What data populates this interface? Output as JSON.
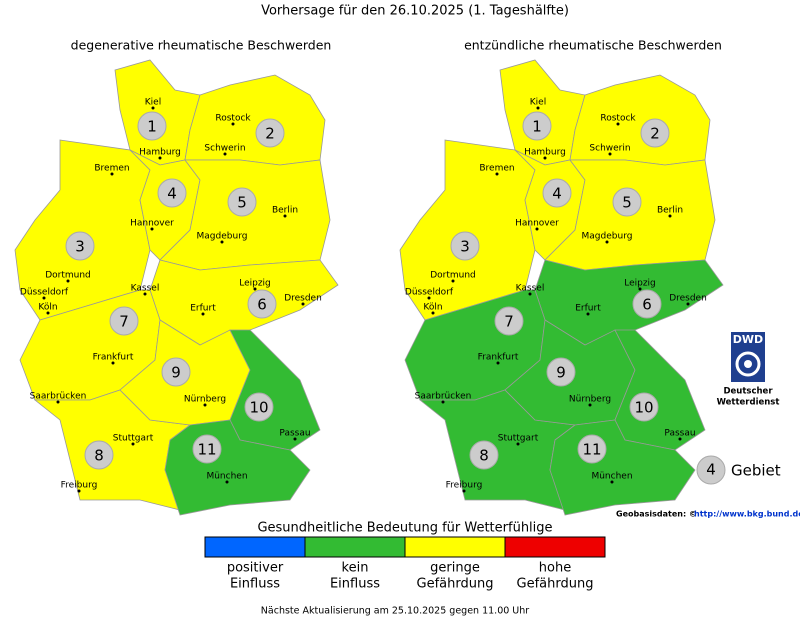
{
  "title": "Vorhersage für den 26.10.2025 (1. Tageshälfte)",
  "regions": [
    "1",
    "2",
    "3",
    "4",
    "5",
    "6",
    "7",
    "8",
    "9",
    "10",
    "11"
  ],
  "cities": [
    "Kiel",
    "Rostock",
    "Hamburg",
    "Schwerin",
    "Bremen",
    "Berlin",
    "Hannover",
    "Magdeburg",
    "Dortmund",
    "Düsseldorf",
    "Köln",
    "Kassel",
    "Leipzig",
    "Dresden",
    "Erfurt",
    "Frankfurt",
    "Nürnberg",
    "Saarbrücken",
    "Stuttgart",
    "Passau",
    "München",
    "Freiburg"
  ],
  "maps": [
    {
      "subtitle": "degenerative rheumatische Beschwerden",
      "region_colors": [
        "#ffff00",
        "#ffff00",
        "#ffff00",
        "#ffff00",
        "#ffff00",
        "#ffff00",
        "#ffff00",
        "#ffff00",
        "#ffff00",
        "#33bb33",
        "#33bb33"
      ]
    },
    {
      "subtitle": "entzündliche rheumatische Beschwerden",
      "region_colors": [
        "#ffff00",
        "#ffff00",
        "#ffff00",
        "#ffff00",
        "#ffff00",
        "#33bb33",
        "#33bb33",
        "#33bb33",
        "#33bb33",
        "#33bb33",
        "#33bb33"
      ]
    }
  ],
  "logo": {
    "mark": "DWD",
    "lines": [
      "Deutscher",
      "Wetterdienst"
    ]
  },
  "key": {
    "number": "4",
    "label": "Gebiet"
  },
  "source": {
    "label": "Geobasisdaten: ©",
    "link": "http://www.bkg.bund.de"
  },
  "legend": {
    "title": "Gesundheitliche Bedeutung für Wetterfühlige",
    "items": [
      {
        "lines": [
          "positiver",
          "Einfluss"
        ],
        "color": "#0066ff"
      },
      {
        "lines": [
          "kein",
          "Einfluss"
        ],
        "color": "#33bb33"
      },
      {
        "lines": [
          "geringe",
          "Gefährdung"
        ],
        "color": "#ffff00"
      },
      {
        "lines": [
          "hohe",
          "Gefährdung"
        ],
        "color": "#ee0000"
      }
    ]
  },
  "footer": "Nächste Aktualisierung am 25.10.2025 gegen 11.00 Uhr"
}
